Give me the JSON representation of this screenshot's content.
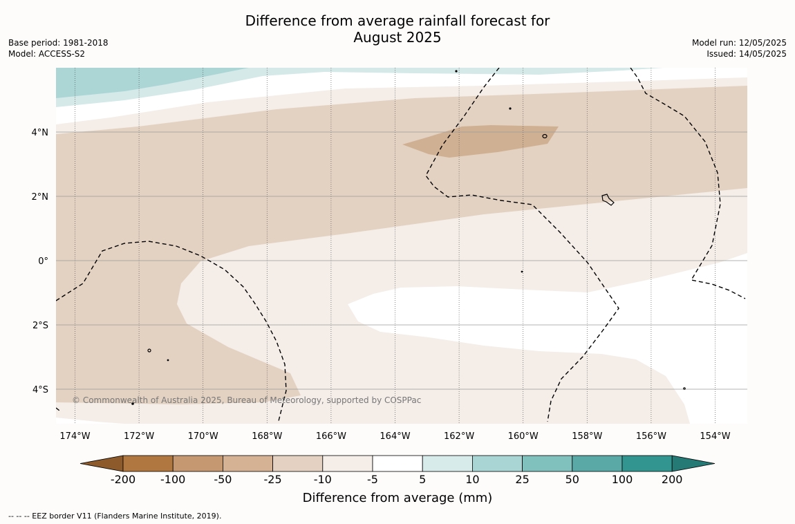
{
  "title_line1": "Difference from average rainfall forecast for",
  "title_line2": "August 2025",
  "base_period": "Base period: 1981-2018",
  "model": "Model: ACCESS-S2",
  "model_run": "Model run: 12/05/2025",
  "issued": "Issued: 14/05/2025",
  "copyright": "© Commonwealth of Australia 2025, Bureau of Meteorology, supported by COSPPac",
  "footnote": "--  --  -- EEZ border V11 (Flanders Marine Institute, 2019).",
  "lon_labels": [
    "174°W",
    "172°W",
    "170°W",
    "168°W",
    "166°W",
    "164°W",
    "162°W",
    "160°W",
    "158°W",
    "156°W",
    "154°W"
  ],
  "lat_labels": [
    "4°N",
    "2°N",
    "0°",
    "2°S",
    "4°S"
  ],
  "colorbar": {
    "title": "Difference from average (mm)",
    "tick_labels": [
      "-200",
      "-100",
      "-50",
      "-25",
      "-10",
      "-5",
      "5",
      "10",
      "25",
      "50",
      "100",
      "200"
    ],
    "colors": [
      "#8c5a2b",
      "#b07840",
      "#c59872",
      "#d6b295",
      "#e4d1c1",
      "#f4ede8",
      "#ffffff",
      "#d6ebea",
      "#a9d5d5",
      "#80c0bd",
      "#5aa9a7",
      "#33958f",
      "#267a76"
    ]
  },
  "colors": {
    "band_minus_50_minus_25": "#d0b093",
    "band_minus_25_minus_10": "#e3d2c2",
    "band_minus_10_minus_5": "#f4ede8",
    "band_5_10": "#d4e9e8",
    "band_10_25": "#acd5d6"
  }
}
